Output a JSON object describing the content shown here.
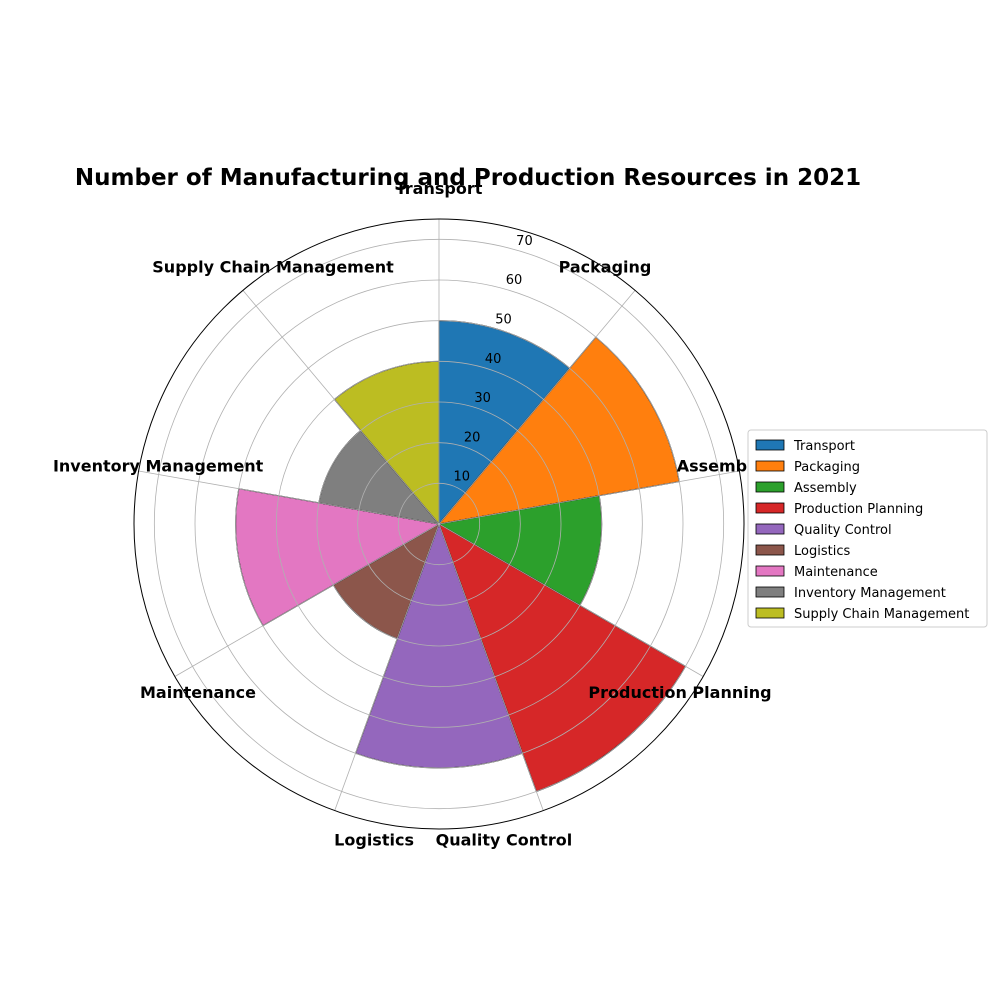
{
  "chart_data": {
    "type": "bar",
    "subtype": "polar",
    "title": "Number of Manufacturing and Production Resources in 2021",
    "categories": [
      "Transport",
      "Packaging",
      "Assembly",
      "Production Planning",
      "Quality Control",
      "Logistics",
      "Maintenance",
      "Inventory Management",
      "Supply Chain Management"
    ],
    "values": [
      50,
      60,
      40,
      70,
      60,
      30,
      50,
      30,
      40
    ],
    "colors": [
      "#1f77b4",
      "#ff7f0e",
      "#2ca02c",
      "#d62728",
      "#9467bd",
      "#8c564b",
      "#e377c2",
      "#7f7f7f",
      "#bcbd22"
    ],
    "rlim": [
      0,
      75
    ],
    "rticks": [
      10,
      20,
      30,
      40,
      50,
      60,
      70
    ],
    "grid": true,
    "legend": "right"
  }
}
